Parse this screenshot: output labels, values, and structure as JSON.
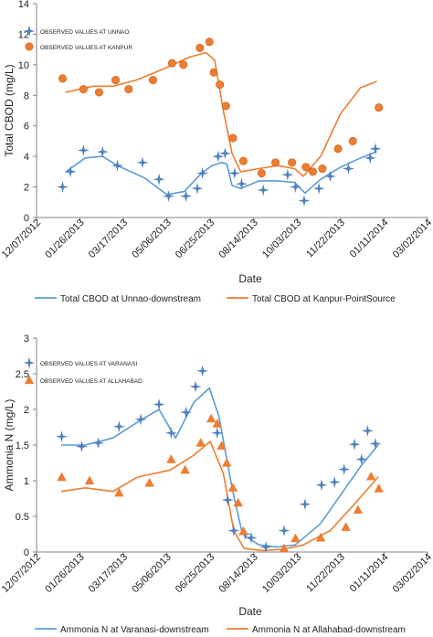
{
  "chart_data": [
    {
      "type": "line",
      "ylabel": "Total CBOD  (mg/L)",
      "xlabel": "Date",
      "ylim": [
        0,
        14
      ],
      "yticks": [
        "0",
        "2",
        "4",
        "6",
        "8",
        "10",
        "12",
        "14"
      ],
      "xlim": [
        "2012-12-07",
        "2014-03-02"
      ],
      "xticks": [
        "12/07/2012",
        "01/26/2013",
        "03/17/2013",
        "05/06/2013",
        "06/25/2013",
        "08/14/2013",
        "10/03/2013",
        "11/22/2013",
        "01/11/2014",
        "03/02/2014"
      ],
      "grid": false,
      "legend_inset": [
        "OBSERVED VALUES AT UNNAO",
        "OBSERVED VALUES AT KANPUR"
      ],
      "legend_bottom": [
        "Total CBOD at Unnao-downstream",
        "Total CBOD at Kanpur-PointSource"
      ],
      "series": [
        {
          "name": "Total CBOD at Unnao-downstream",
          "kind": "line",
          "color": "#5b9bd5",
          "x": [
            "2013-01-10",
            "2013-02-01",
            "2013-02-21",
            "2013-03-10",
            "2013-04-10",
            "2013-05-06",
            "2013-05-26",
            "2013-06-15",
            "2013-06-27",
            "2013-07-08",
            "2013-07-14",
            "2013-07-20",
            "2013-07-30",
            "2013-08-20",
            "2013-09-10",
            "2013-09-30",
            "2013-10-12",
            "2013-10-30",
            "2013-11-22",
            "2013-12-15",
            "2014-01-02"
          ],
          "y": [
            3.0,
            3.9,
            4.0,
            3.4,
            2.6,
            1.5,
            1.7,
            2.9,
            3.4,
            3.6,
            3.5,
            2.1,
            1.9,
            2.4,
            2.4,
            2.3,
            1.6,
            2.5,
            3.3,
            3.9,
            4.3
          ]
        },
        {
          "name": "Total CBOD at Kanpur-PointSource",
          "kind": "line",
          "color": "#ed7d31",
          "x": [
            "2013-01-10",
            "2013-02-10",
            "2013-03-05",
            "2013-04-01",
            "2013-05-01",
            "2013-06-01",
            "2013-06-20",
            "2013-06-30",
            "2013-07-10",
            "2013-07-20",
            "2013-07-30",
            "2013-08-20",
            "2013-09-10",
            "2013-09-30",
            "2013-10-10",
            "2013-10-30",
            "2013-11-22",
            "2013-12-15",
            "2014-01-02"
          ],
          "y": [
            8.2,
            8.6,
            8.6,
            9.0,
            9.7,
            10.5,
            10.8,
            10.3,
            7.0,
            4.2,
            3.0,
            3.2,
            3.4,
            3.2,
            2.7,
            4.0,
            6.8,
            8.5,
            8.9
          ]
        },
        {
          "name": "OBSERVED VALUES AT UNNAO",
          "kind": "markers",
          "marker": "cross",
          "color": "#4f81bd",
          "x": [
            "2013-01-06",
            "2013-01-15",
            "2013-01-30",
            "2013-02-21",
            "2013-03-10",
            "2013-04-08",
            "2013-04-27",
            "2013-05-08",
            "2013-05-28",
            "2013-06-10",
            "2013-06-16",
            "2013-07-04",
            "2013-07-12",
            "2013-07-23",
            "2013-07-31",
            "2013-08-25",
            "2013-09-22",
            "2013-10-01",
            "2013-10-11",
            "2013-10-28",
            "2013-11-10",
            "2013-12-01",
            "2013-12-26",
            "2014-01-01"
          ],
          "y": [
            2.0,
            3.0,
            4.4,
            4.3,
            3.4,
            3.6,
            2.5,
            1.4,
            1.4,
            1.9,
            2.9,
            4.0,
            4.2,
            2.9,
            2.2,
            1.8,
            2.8,
            2.0,
            1.1,
            1.9,
            2.7,
            3.2,
            3.9,
            4.5
          ]
        },
        {
          "name": "OBSERVED VALUES AT KANPUR",
          "kind": "markers",
          "marker": "circle",
          "color": "#ed7d31",
          "x": [
            "2013-01-06",
            "2013-01-30",
            "2013-02-17",
            "2013-03-08",
            "2013-03-23",
            "2013-04-20",
            "2013-05-12",
            "2013-05-25",
            "2013-06-13",
            "2013-06-24",
            "2013-06-29",
            "2013-07-06",
            "2013-07-13",
            "2013-07-21",
            "2013-08-02",
            "2013-08-23",
            "2013-09-08",
            "2013-09-27",
            "2013-10-13",
            "2013-10-21",
            "2013-11-01",
            "2013-11-19",
            "2013-12-06",
            "2014-01-05"
          ],
          "y": [
            9.1,
            8.4,
            8.2,
            9.0,
            8.4,
            9.0,
            10.1,
            10.0,
            11.1,
            11.5,
            9.5,
            8.7,
            7.3,
            5.2,
            3.7,
            2.9,
            3.6,
            3.6,
            3.3,
            3.0,
            3.2,
            4.5,
            5.0,
            7.2
          ]
        }
      ]
    },
    {
      "type": "line",
      "ylabel": "Ammonia N  (mg/L)",
      "xlabel": "Date",
      "ylim": [
        0,
        3
      ],
      "yticks": [
        "0",
        "0.5",
        "1",
        "1.5",
        "2",
        "2.5",
        "3"
      ],
      "xlim": [
        "2012-12-07",
        "2014-03-02"
      ],
      "xticks": [
        "12/07/2012",
        "01/26/2013",
        "03/17/2013",
        "05/06/2013",
        "06/25/2013",
        "08/14/2013",
        "10/03/2013",
        "11/22/2013",
        "01/11/2014",
        "03/02/2014"
      ],
      "grid": false,
      "legend_inset": [
        "OBSERVED VALUES AT VARANASI",
        "OBSERVED VALUES AT ALLAHABAD"
      ],
      "legend_bottom": [
        "Ammonia N at Varanasi-downstream",
        "Ammonia N at Allahabad-downstream"
      ],
      "series": [
        {
          "name": "Ammonia N at Varanasi-downstream",
          "kind": "line",
          "color": "#5b9bd5",
          "x": [
            "2013-01-05",
            "2013-02-01",
            "2013-03-05",
            "2013-04-06",
            "2013-04-27",
            "2013-05-16",
            "2013-06-06",
            "2013-06-24",
            "2013-07-05",
            "2013-07-20",
            "2013-08-01",
            "2013-08-20",
            "2013-09-10",
            "2013-10-01",
            "2013-10-30",
            "2013-11-22",
            "2013-12-15",
            "2014-01-04"
          ],
          "y": [
            1.5,
            1.5,
            1.6,
            1.85,
            2.0,
            1.6,
            2.1,
            2.3,
            1.9,
            0.9,
            0.25,
            0.1,
            0.07,
            0.1,
            0.4,
            0.8,
            1.2,
            1.5
          ]
        },
        {
          "name": "Ammonia N at Allahabad-downstream",
          "kind": "line",
          "color": "#ed7d31",
          "x": [
            "2013-01-05",
            "2013-02-01",
            "2013-03-05",
            "2013-04-02",
            "2013-05-10",
            "2013-06-05",
            "2013-06-25",
            "2013-07-10",
            "2013-07-22",
            "2013-08-03",
            "2013-08-24",
            "2013-09-18",
            "2013-10-10",
            "2013-11-10",
            "2013-12-10",
            "2014-01-04"
          ],
          "y": [
            0.85,
            0.9,
            0.85,
            1.05,
            1.15,
            1.35,
            1.55,
            1.1,
            0.3,
            0.05,
            0.02,
            0.04,
            0.1,
            0.3,
            0.7,
            1.05
          ]
        },
        {
          "name": "OBSERVED VALUES AT VARANASI",
          "kind": "markers",
          "marker": "cross",
          "color": "#4f81bd",
          "x": [
            "2013-01-05",
            "2013-01-28",
            "2013-02-16",
            "2013-03-12",
            "2013-04-06",
            "2013-04-27",
            "2013-05-11",
            "2013-05-28",
            "2013-06-08",
            "2013-06-16",
            "2013-07-03",
            "2013-07-15",
            "2013-07-22",
            "2013-08-04",
            "2013-08-11",
            "2013-08-28",
            "2013-09-18",
            "2013-10-12",
            "2013-10-31",
            "2013-11-15",
            "2013-11-26",
            "2013-12-08",
            "2013-12-16",
            "2013-12-23",
            "2014-01-01"
          ],
          "y": [
            1.62,
            1.48,
            1.53,
            1.76,
            1.86,
            2.07,
            1.67,
            1.96,
            2.32,
            2.54,
            1.67,
            0.73,
            0.3,
            0.25,
            0.2,
            0.07,
            0.3,
            0.67,
            0.94,
            0.98,
            1.16,
            1.51,
            1.3,
            1.7,
            1.52
          ]
        },
        {
          "name": "OBSERVED VALUES AT ALLAHABAD",
          "kind": "markers",
          "marker": "triangle",
          "color": "#ed7d31",
          "x": [
            "2013-01-05",
            "2013-02-06",
            "2013-03-12",
            "2013-04-16",
            "2013-05-11",
            "2013-05-27",
            "2013-06-14",
            "2013-06-26",
            "2013-07-03",
            "2013-07-08",
            "2013-07-14",
            "2013-07-21",
            "2013-07-27",
            "2013-08-02",
            "2013-09-18",
            "2013-10-01",
            "2013-10-30",
            "2013-11-28",
            "2013-12-12",
            "2013-12-27",
            "2014-01-05"
          ],
          "y": [
            1.05,
            1.0,
            0.83,
            0.97,
            1.3,
            1.15,
            1.53,
            1.87,
            1.8,
            1.49,
            1.25,
            0.9,
            0.69,
            0.29,
            0.05,
            0.19,
            0.2,
            0.35,
            0.59,
            1.06,
            0.89
          ]
        }
      ]
    }
  ]
}
